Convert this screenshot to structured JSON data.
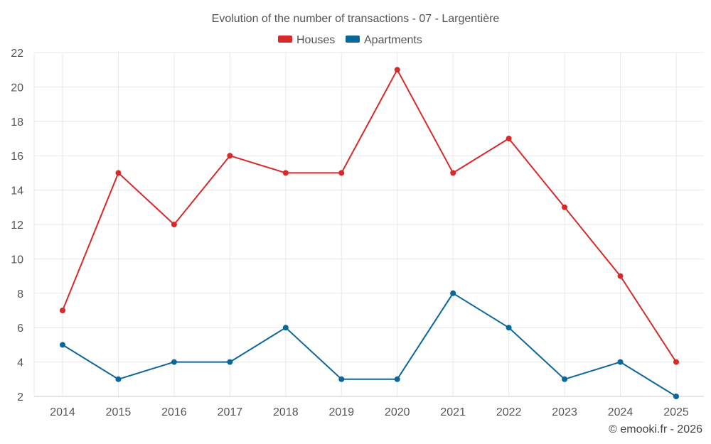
{
  "chart_data": {
    "type": "line",
    "title": "Evolution of the number of transactions - 07 - Largentière",
    "categories": [
      "2014",
      "2015",
      "2016",
      "2017",
      "2018",
      "2019",
      "2020",
      "2021",
      "2022",
      "2023",
      "2024",
      "2025"
    ],
    "series": [
      {
        "name": "Houses",
        "color": "#d62a2a",
        "values": [
          7,
          15,
          12,
          16,
          15,
          15,
          21,
          15,
          17,
          13,
          9,
          4
        ]
      },
      {
        "name": "Apartments",
        "color": "#0b6699",
        "values": [
          5,
          3,
          4,
          4,
          6,
          3,
          3,
          8,
          6,
          3,
          4,
          2
        ]
      }
    ],
    "ylim": [
      2,
      22
    ],
    "yticks": [
      2,
      4,
      6,
      8,
      10,
      12,
      14,
      16,
      18,
      20,
      22
    ],
    "grid": true,
    "legend_position": "top-center",
    "xlabel": "",
    "ylabel": ""
  },
  "credit": "© emooki.fr - 2026"
}
